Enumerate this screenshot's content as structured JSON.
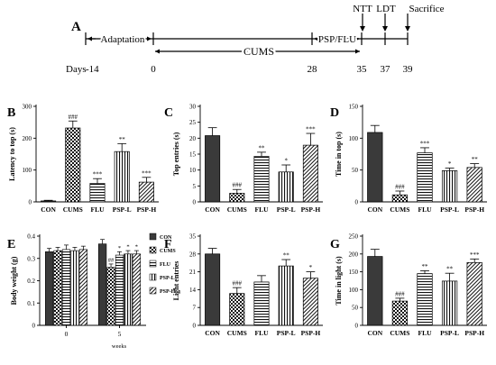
{
  "timeline": {
    "panel_letter": "A",
    "adaptation_label": "Adaptation",
    "cums_label": "CUMS",
    "psp_flu_label": "PSP/FLU",
    "events": [
      "NTT",
      "LDT",
      "Sacrifice"
    ],
    "days_label": "Days",
    "days": [
      "-14",
      "0",
      "28",
      "35",
      "37",
      "39"
    ]
  },
  "patterns": {
    "CON": "solid-dark",
    "CUMS": "checkerboard",
    "FLU": "horizontal-lines",
    "PSP-L": "vertical-lines",
    "PSP-H": "diagonal-lines"
  },
  "chart_data": [
    {
      "panel": "B",
      "type": "bar",
      "ylabel": "Latency to top (s)",
      "ylim": [
        0,
        300
      ],
      "yticks": [
        0,
        100,
        200,
        300
      ],
      "categories": [
        "CON",
        "CUMS",
        "FLU",
        "PSP-L",
        "PSP-H"
      ],
      "values": [
        3,
        232,
        58,
        158,
        62
      ],
      "errors": [
        2,
        22,
        15,
        25,
        15
      ],
      "annotations": [
        "",
        "###",
        "***",
        "**",
        "***"
      ]
    },
    {
      "panel": "C",
      "type": "bar",
      "ylabel": "Top entries (s)",
      "ylim": [
        0,
        30
      ],
      "yticks": [
        0,
        5,
        10,
        15,
        20,
        25,
        30
      ],
      "categories": [
        "CON",
        "CUMS",
        "FLU",
        "PSP-L",
        "PSP-H"
      ],
      "values": [
        20.8,
        2.7,
        14.3,
        9.4,
        17.8
      ],
      "errors": [
        2.5,
        1.2,
        1.3,
        2.2,
        3.7
      ],
      "annotations": [
        "",
        "###",
        "**",
        "*",
        "***"
      ]
    },
    {
      "panel": "D",
      "type": "bar",
      "ylabel": "Time in top (s)",
      "ylim": [
        0,
        150
      ],
      "yticks": [
        0,
        50,
        100,
        150
      ],
      "categories": [
        "CON",
        "CUMS",
        "FLU",
        "PSP-L",
        "PSP-H"
      ],
      "values": [
        109,
        11,
        77,
        49,
        54
      ],
      "errors": [
        11,
        6,
        8,
        4,
        6
      ],
      "annotations": [
        "",
        "###",
        "***",
        "*",
        "**"
      ]
    },
    {
      "panel": "E",
      "type": "bar",
      "xlabel": "weeks",
      "ylabel": "Body weight (g)",
      "ylim": [
        0,
        0.4
      ],
      "yticks": [
        0,
        0.1,
        0.2,
        0.3,
        0.4
      ],
      "categories": [
        "0",
        "5"
      ],
      "series": [
        {
          "name": "CON",
          "values": [
            0.33,
            0.365
          ],
          "errors": [
            0.015,
            0.02
          ]
        },
        {
          "name": "CUMS",
          "values": [
            0.335,
            0.26
          ],
          "errors": [
            0.015,
            0.015
          ]
        },
        {
          "name": "FLU",
          "values": [
            0.34,
            0.315
          ],
          "errors": [
            0.02,
            0.015
          ]
        },
        {
          "name": "PSP-L",
          "values": [
            0.335,
            0.32
          ],
          "errors": [
            0.015,
            0.015
          ]
        },
        {
          "name": "PSP-H",
          "values": [
            0.34,
            0.32
          ],
          "errors": [
            0.015,
            0.015
          ]
        }
      ],
      "annotations": [
        [
          "",
          "",
          "",
          "",
          ""
        ],
        [
          "",
          "##",
          "*",
          "*",
          "*"
        ]
      ],
      "legend_position": "right"
    },
    {
      "panel": "F",
      "type": "bar",
      "ylabel": "Light entries",
      "ylim": [
        0,
        35
      ],
      "yticks": [
        0,
        7,
        14,
        21,
        28,
        35
      ],
      "categories": [
        "CON",
        "CUMS",
        "FLU",
        "PSP-L",
        "PSP-H"
      ],
      "values": [
        28,
        12.5,
        17,
        23.3,
        18.5
      ],
      "errors": [
        2.2,
        2.3,
        2.5,
        2.5,
        2.5
      ],
      "annotations": [
        "",
        "###",
        "",
        "**",
        "*"
      ]
    },
    {
      "panel": "G",
      "type": "bar",
      "ylabel": "Time in light (s)",
      "ylim": [
        0,
        250
      ],
      "yticks": [
        0,
        50,
        100,
        150,
        200,
        250
      ],
      "categories": [
        "CON",
        "CUMS",
        "FLU",
        "PSP-L",
        "PSP-H"
      ],
      "values": [
        193,
        68,
        145,
        124,
        176
      ],
      "errors": [
        20,
        8,
        8,
        22,
        10
      ],
      "annotations": [
        "",
        "###",
        "**",
        "**",
        "***"
      ]
    }
  ]
}
